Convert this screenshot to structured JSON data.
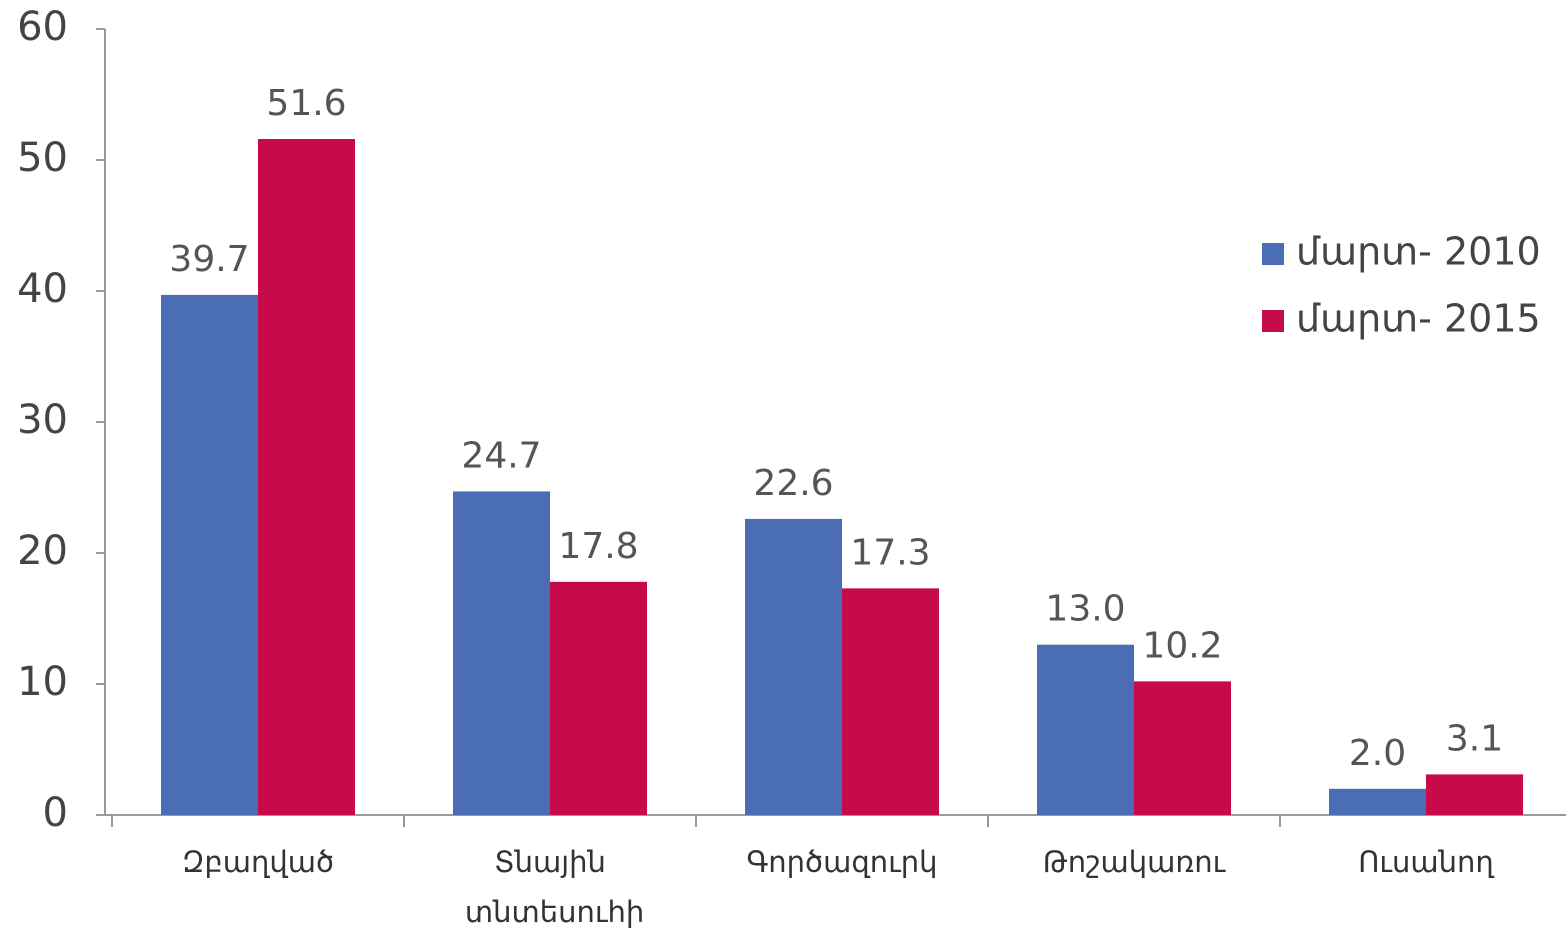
{
  "chart_data": {
    "type": "bar",
    "categories": [
      "Զբաղված",
      "Տնային տնտեսուհի",
      "Գործազուրկ",
      "Թոշակառու",
      "Ուսանող"
    ],
    "series": [
      {
        "name": "մարտ- 2010",
        "color": "#4a6db4",
        "values": [
          39.7,
          24.7,
          22.6,
          13.0,
          2.0
        ],
        "value_labels": [
          "39.7",
          "24.7",
          "22.6",
          "13.0",
          "2.0"
        ]
      },
      {
        "name": "մարտ- 2015",
        "color": "#c70a4a",
        "values": [
          51.6,
          17.8,
          17.3,
          10.2,
          3.1
        ],
        "value_labels": [
          "51.6",
          "17.8",
          "17.3",
          "10.2",
          "3.1"
        ]
      }
    ],
    "ylim": [
      0,
      60
    ],
    "yticks": [
      0,
      10,
      20,
      30,
      40,
      50,
      60
    ],
    "grid": false,
    "legend": "right"
  }
}
